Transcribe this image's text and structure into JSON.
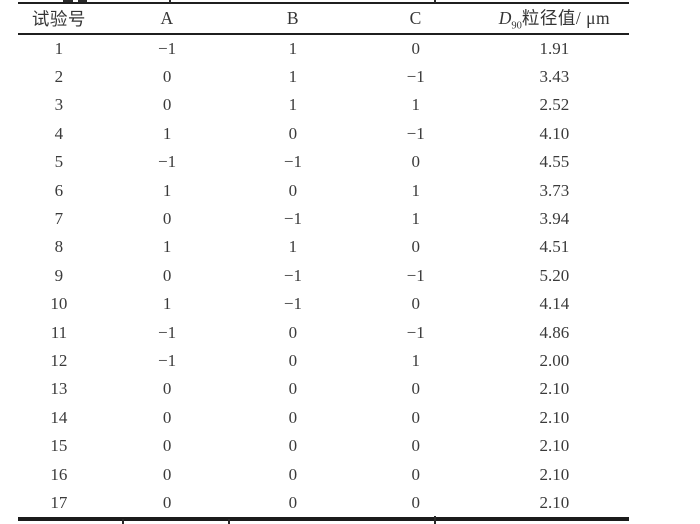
{
  "table": {
    "headers": [
      "试验号",
      "A",
      "B",
      "C"
    ],
    "last_header": {
      "symbol": "D",
      "subscript": "90",
      "suffix": "粒径值/ μm"
    },
    "rows": [
      [
        "1",
        "−1",
        "1",
        "0",
        "1.91"
      ],
      [
        "2",
        "0",
        "1",
        "−1",
        "3.43"
      ],
      [
        "3",
        "0",
        "1",
        "1",
        "2.52"
      ],
      [
        "4",
        "1",
        "0",
        "−1",
        "4.10"
      ],
      [
        "5",
        "−1",
        "−1",
        "0",
        "4.55"
      ],
      [
        "6",
        "1",
        "0",
        "1",
        "3.73"
      ],
      [
        "7",
        "0",
        "−1",
        "1",
        "3.94"
      ],
      [
        "8",
        "1",
        "1",
        "0",
        "4.51"
      ],
      [
        "9",
        "0",
        "−1",
        "−1",
        "5.20"
      ],
      [
        "10",
        "1",
        "−1",
        "0",
        "4.14"
      ],
      [
        "11",
        "−1",
        "0",
        "−1",
        "4.86"
      ],
      [
        "12",
        "−1",
        "0",
        "1",
        "2.00"
      ],
      [
        "13",
        "0",
        "0",
        "0",
        "2.10"
      ],
      [
        "14",
        "0",
        "0",
        "0",
        "2.10"
      ],
      [
        "15",
        "0",
        "0",
        "0",
        "2.10"
      ],
      [
        "16",
        "0",
        "0",
        "0",
        "2.10"
      ],
      [
        "17",
        "0",
        "0",
        "0",
        "2.10"
      ]
    ],
    "colors": {
      "text": "#3a3a3a",
      "rule": "#1f1f1f",
      "background": "#ffffff"
    }
  }
}
